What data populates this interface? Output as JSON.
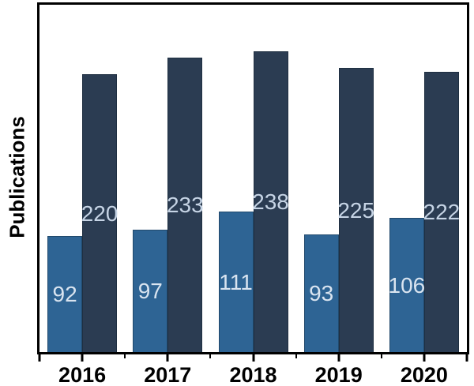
{
  "chart_data": {
    "type": "bar",
    "title": "",
    "xlabel": "",
    "ylabel": "Publications",
    "categories": [
      "2016",
      "2017",
      "2018",
      "2019",
      "2020"
    ],
    "series": [
      {
        "name": "lower-steel-blue-series",
        "color": "#2E6494",
        "label_color": "#D9E4F0",
        "values": [
          92,
          97,
          111,
          93,
          106
        ]
      },
      {
        "name": "upper-dark-navy-series",
        "color": "#2B3C52",
        "label_color": "#C6D4E5",
        "values": [
          220,
          233,
          238,
          225,
          222
        ]
      }
    ],
    "ylim": [
      0,
      275
    ],
    "y_axis_tick_labels": "none",
    "grid": false,
    "legend": false,
    "value_labels_position": "centered-inside-bars"
  },
  "colors": {
    "axis": "#000000",
    "background": "#FFFFFF",
    "category_label": "#000000"
  }
}
